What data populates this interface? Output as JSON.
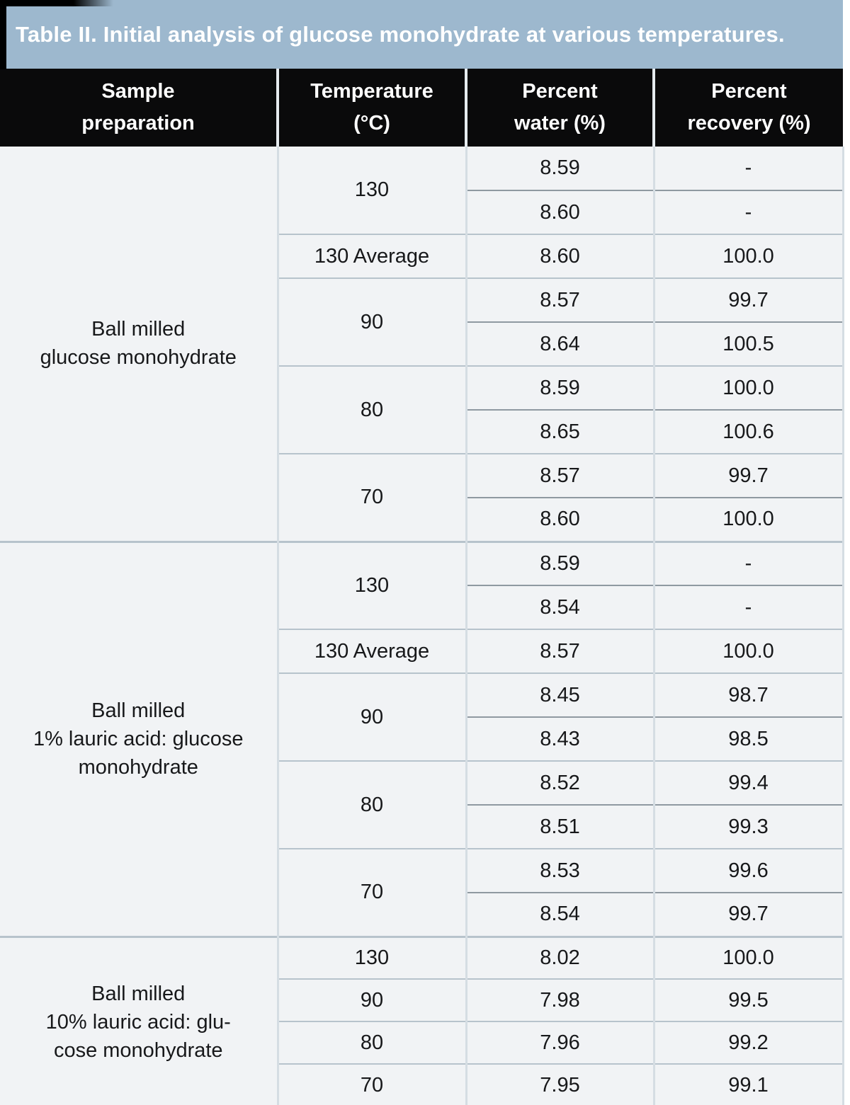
{
  "title": "Table II. Initial analysis of glucose monohydrate at various temperatures.",
  "headers": [
    {
      "line1": "Sample",
      "line2": "preparation"
    },
    {
      "line1": "Temperature",
      "line2": "(°C)"
    },
    {
      "line1": "Percent",
      "line2": "water (%)"
    },
    {
      "line1": "Percent",
      "line2": "recovery (%)"
    }
  ],
  "sections": [
    {
      "sample_lines": [
        "Ball milled",
        "glucose monohydrate"
      ],
      "groups": [
        {
          "temp": "130",
          "rows": [
            [
              "8.59",
              "-"
            ],
            [
              "8.60",
              "-"
            ]
          ]
        },
        {
          "temp": "130 Average",
          "rows": [
            [
              "8.60",
              "100.0"
            ]
          ]
        },
        {
          "temp": "90",
          "rows": [
            [
              "8.57",
              "99.7"
            ],
            [
              "8.64",
              "100.5"
            ]
          ]
        },
        {
          "temp": "80",
          "rows": [
            [
              "8.59",
              "100.0"
            ],
            [
              "8.65",
              "100.6"
            ]
          ]
        },
        {
          "temp": "70",
          "rows": [
            [
              "8.57",
              "99.7"
            ],
            [
              "8.60",
              "100.0"
            ]
          ]
        }
      ]
    },
    {
      "sample_lines": [
        "Ball milled",
        "1% lauric acid: glucose",
        "monohydrate"
      ],
      "groups": [
        {
          "temp": "130",
          "rows": [
            [
              "8.59",
              "-"
            ],
            [
              "8.54",
              "-"
            ]
          ]
        },
        {
          "temp": "130 Average",
          "rows": [
            [
              "8.57",
              "100.0"
            ]
          ]
        },
        {
          "temp": "90",
          "rows": [
            [
              "8.45",
              "98.7"
            ],
            [
              "8.43",
              "98.5"
            ]
          ]
        },
        {
          "temp": "80",
          "rows": [
            [
              "8.52",
              "99.4"
            ],
            [
              "8.51",
              "99.3"
            ]
          ]
        },
        {
          "temp": "70",
          "rows": [
            [
              "8.53",
              "99.6"
            ],
            [
              "8.54",
              "99.7"
            ]
          ]
        }
      ]
    },
    {
      "sample_lines": [
        "Ball milled",
        "10% lauric acid: glu-",
        "cose monohydrate"
      ],
      "groups": [
        {
          "temp": "130",
          "rows": [
            [
              "8.02",
              "100.0"
            ]
          ]
        },
        {
          "temp": "90",
          "rows": [
            [
              "7.98",
              "99.5"
            ]
          ]
        },
        {
          "temp": "80",
          "rows": [
            [
              "7.96",
              "99.2"
            ]
          ]
        },
        {
          "temp": "70",
          "rows": [
            [
              "7.95",
              "99.1"
            ]
          ]
        }
      ]
    }
  ],
  "colors": {
    "title_bar_bg": "#9db8ce",
    "header_bg": "#0a0a0b",
    "header_text": "#ffffff",
    "row_bg": "#f1f3f5",
    "grid_light": "#d5dde3",
    "grid_medium": "#b7c3cc",
    "grid_dark": "#8f99a1",
    "text": "#17181a"
  }
}
